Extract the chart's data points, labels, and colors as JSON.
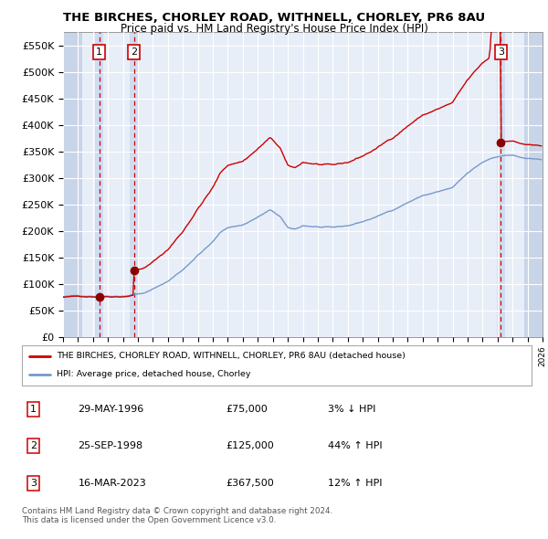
{
  "title": "THE BIRCHES, CHORLEY ROAD, WITHNELL, CHORLEY, PR6 8AU",
  "subtitle": "Price paid vs. HM Land Registry's House Price Index (HPI)",
  "legend_line1": "THE BIRCHES, CHORLEY ROAD, WITHNELL, CHORLEY, PR6 8AU (detached house)",
  "legend_line2": "HPI: Average price, detached house, Chorley",
  "footer1": "Contains HM Land Registry data © Crown copyright and database right 2024.",
  "footer2": "This data is licensed under the Open Government Licence v3.0.",
  "sale_events": [
    {
      "label": "1",
      "date_year": 1996.41,
      "price": 75000,
      "note": "29-MAY-1996",
      "pct": "3% ↓ HPI"
    },
    {
      "label": "2",
      "date_year": 1998.73,
      "price": 125000,
      "note": "25-SEP-1998",
      "pct": "44% ↑ HPI"
    },
    {
      "label": "3",
      "date_year": 2023.21,
      "price": 367500,
      "note": "16-MAR-2023",
      "pct": "12% ↑ HPI"
    }
  ],
  "xlim": [
    1994,
    2026
  ],
  "ylim": [
    0,
    575000
  ],
  "yticks": [
    0,
    50000,
    100000,
    150000,
    200000,
    250000,
    300000,
    350000,
    400000,
    450000,
    500000,
    550000
  ],
  "ytick_labels": [
    "£0",
    "£50K",
    "£100K",
    "£150K",
    "£200K",
    "£250K",
    "£300K",
    "£350K",
    "£400K",
    "£450K",
    "£500K",
    "£550K"
  ],
  "red_color": "#cc0000",
  "blue_color": "#7799cc",
  "dark_red_marker": "#880000",
  "bg_color": "#ffffff",
  "plot_bg": "#e8eef8",
  "grid_color": "#ffffff",
  "shade_color": "#d0dcf0",
  "hatch_color": "#c8d4e8",
  "sale_prices": [
    75000,
    125000,
    367500
  ],
  "sale_years": [
    1996.41,
    1998.73,
    2023.21
  ],
  "rows": [
    [
      "1",
      "29-MAY-1996",
      "£75,000",
      "3% ↓ HPI"
    ],
    [
      "2",
      "25-SEP-1998",
      "£125,000",
      "44% ↑ HPI"
    ],
    [
      "3",
      "16-MAR-2023",
      "£367,500",
      "12% ↑ HPI"
    ]
  ]
}
